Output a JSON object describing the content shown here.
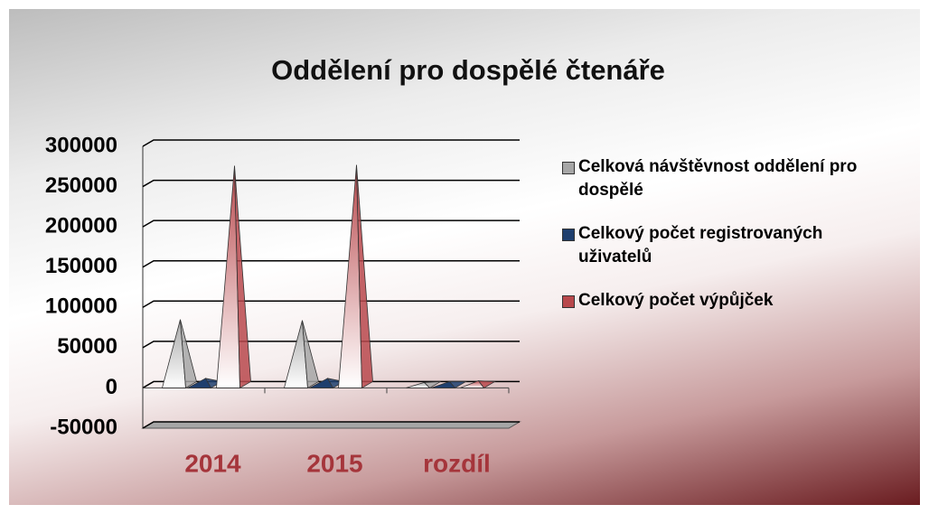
{
  "chart_data": {
    "type": "pyramid3d",
    "title": "Oddělení pro dospělé čtenáře",
    "categories": [
      "2014",
      "2015",
      "rozdíl"
    ],
    "series": [
      {
        "name": "Celková návštěvnost oddělení pro dospělé",
        "color": "#a6a6a6",
        "values": [
          77000,
          76000,
          -1000
        ]
      },
      {
        "name": "Celkový počet registrovaných uživatelů",
        "color": "#1f3f6e",
        "values": [
          4000,
          4000,
          100
        ]
      },
      {
        "name": "Celkový počet výpůjček",
        "color": "#b8484c",
        "values": [
          268000,
          269000,
          1000
        ]
      }
    ],
    "ylim": [
      -50000,
      300000
    ],
    "yticks": [
      -50000,
      0,
      50000,
      100000,
      150000,
      200000,
      250000,
      300000
    ],
    "grid": true,
    "legend": "right"
  }
}
